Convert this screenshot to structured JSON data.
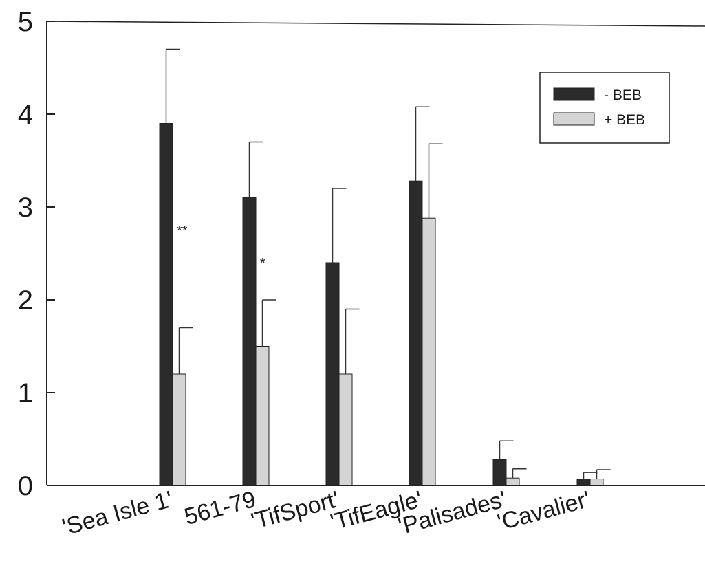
{
  "chart_data": {
    "type": "bar",
    "categories": [
      "'Sea Isle 1'",
      "561-79",
      "'TifSport'",
      "'TifEagle'",
      "'Palisades'",
      "'Cavalier'"
    ],
    "series": [
      {
        "name": "- BEB",
        "values": [
          3.9,
          3.1,
          2.4,
          3.28,
          0.28,
          0.07
        ],
        "errors": [
          0.8,
          0.6,
          0.8,
          0.8,
          0.2,
          0.07
        ],
        "color": "#2b2b2b"
      },
      {
        "name": "+ BEB",
        "values": [
          1.2,
          1.5,
          1.2,
          2.88,
          0.08,
          0.07
        ],
        "errors": [
          0.5,
          0.5,
          0.7,
          0.8,
          0.1,
          0.1
        ],
        "color": "#d4d4d4"
      }
    ],
    "annotations": [
      {
        "category_index": 0,
        "text": "**"
      },
      {
        "category_index": 1,
        "text": "*"
      }
    ],
    "yticks": [
      "0",
      "1",
      "2",
      "3",
      "4",
      "5"
    ],
    "ylim": [
      0,
      5
    ],
    "xlabel": "",
    "ylabel": "",
    "title": "",
    "legend_position": "top-right",
    "grid": false
  }
}
